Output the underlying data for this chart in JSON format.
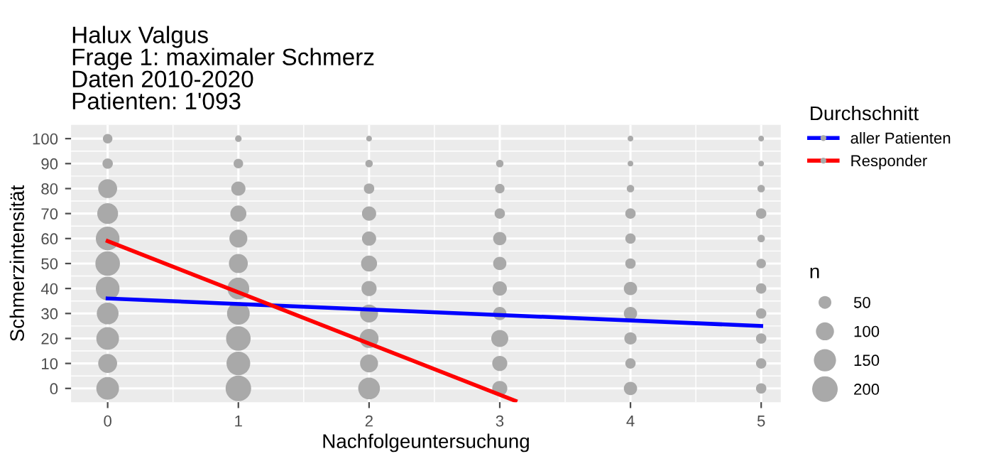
{
  "chart_data": {
    "type": "bubble",
    "title": "Halux Valgus\nFrage 1: maximaler Schmerz\nDaten 2010-2020\nPatienten: 1'093",
    "xlabel": "Nachfolgeuntersuchung",
    "ylabel": "Schmerzintensität",
    "legend_title": [
      "Durchschnitt",
      "n"
    ],
    "legend": "right",
    "grid": true,
    "xlim": [
      -0.28,
      5.15
    ],
    "ylim": [
      -5.5,
      105.5
    ],
    "xticks": [
      0,
      1,
      2,
      3,
      4,
      5
    ],
    "yticks": [
      0,
      10,
      20,
      30,
      40,
      50,
      60,
      70,
      80,
      90,
      100
    ],
    "size_legend": [
      50,
      100,
      150,
      200
    ],
    "series": [
      {
        "color": "#a9a9a9",
        "x": [
          0,
          0,
          0,
          0,
          0,
          0,
          0,
          0,
          0,
          0,
          0,
          1,
          1,
          1,
          1,
          1,
          1,
          1,
          1,
          1,
          1,
          1,
          2,
          2,
          2,
          2,
          2,
          2,
          2,
          2,
          2,
          2,
          2,
          3,
          3,
          3,
          3,
          3,
          3,
          3,
          3,
          3,
          3,
          4,
          4,
          4,
          4,
          4,
          4,
          4,
          4,
          4,
          4,
          4,
          5,
          5,
          5,
          5,
          5,
          5,
          5,
          5,
          5,
          5,
          5
        ],
        "values": [
          100,
          90,
          80,
          70,
          60,
          50,
          40,
          30,
          20,
          10,
          0,
          100,
          90,
          80,
          70,
          60,
          50,
          40,
          30,
          20,
          10,
          0,
          100,
          90,
          80,
          70,
          60,
          50,
          40,
          30,
          20,
          10,
          0,
          90,
          80,
          70,
          60,
          50,
          40,
          30,
          20,
          10,
          0,
          100,
          90,
          80,
          70,
          60,
          50,
          40,
          30,
          20,
          10,
          0,
          100,
          90,
          80,
          70,
          60,
          50,
          40,
          30,
          20,
          10,
          0
        ],
        "sizes": [
          28,
          33,
          110,
          133,
          172,
          185,
          172,
          145,
          158,
          110,
          158,
          13,
          28,
          62,
          79,
          99,
          110,
          145,
          158,
          185,
          172,
          200,
          10,
          17,
          33,
          62,
          62,
          79,
          70,
          99,
          110,
          99,
          145,
          17,
          28,
          33,
          54,
          54,
          62,
          54,
          89,
          70,
          70,
          10,
          10,
          17,
          33,
          33,
          33,
          54,
          54,
          46,
          33,
          54,
          10,
          10,
          17,
          33,
          17,
          28,
          33,
          33,
          33,
          33,
          33
        ]
      },
      {
        "type": "line",
        "name": "aller Patienten",
        "color": "#0000ff",
        "x": [
          0,
          5
        ],
        "values": [
          36,
          25
        ]
      },
      {
        "type": "line",
        "name": "Responder",
        "color": "#ff0000",
        "x": [
          0,
          3.12
        ],
        "values": [
          59,
          -5
        ]
      }
    ]
  }
}
